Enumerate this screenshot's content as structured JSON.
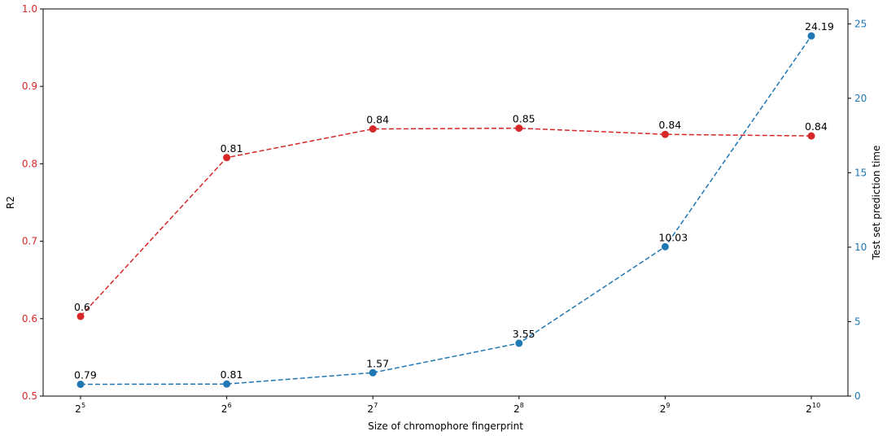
{
  "chart_data": {
    "type": "line",
    "xlabel": "Size of chromophore fingerprint",
    "x_tick_labels": [
      {
        "base": "2",
        "exp": "5"
      },
      {
        "base": "2",
        "exp": "6"
      },
      {
        "base": "2",
        "exp": "7"
      },
      {
        "base": "2",
        "exp": "8"
      },
      {
        "base": "2",
        "exp": "9"
      },
      {
        "base": "2",
        "exp": "10"
      }
    ],
    "x": [
      32,
      64,
      128,
      256,
      512,
      1024
    ],
    "x_scale": "log2",
    "left_axis": {
      "label": "R2",
      "ylim": [
        0.5,
        1.0
      ],
      "ticks": [
        "0.5",
        "0.6",
        "0.7",
        "0.8",
        "0.9",
        "1.0"
      ],
      "color": "#d62728"
    },
    "right_axis": {
      "label": "Test set prediction time",
      "ylim": [
        0,
        26
      ],
      "ticks": [
        "0",
        "5",
        "10",
        "15",
        "20",
        "25"
      ],
      "color": "#1f77b4"
    },
    "series": [
      {
        "axis": "left",
        "color": "#d62728",
        "line_style": "dashed",
        "marker": "circle",
        "values": [
          0.603,
          0.808,
          0.845,
          0.846,
          0.838,
          0.836
        ],
        "labels": [
          "0.6",
          "0.81",
          "0.84",
          "0.85",
          "0.84",
          "0.84"
        ]
      },
      {
        "axis": "right",
        "color": "#1f77b4",
        "line_style": "dashed",
        "marker": "circle",
        "values": [
          0.79,
          0.81,
          1.57,
          3.55,
          10.03,
          24.19
        ],
        "labels": [
          "0.79",
          "0.81",
          "1.57",
          "3.55",
          "10.03",
          "24.19"
        ]
      }
    ],
    "grid": false,
    "legend": "none"
  }
}
